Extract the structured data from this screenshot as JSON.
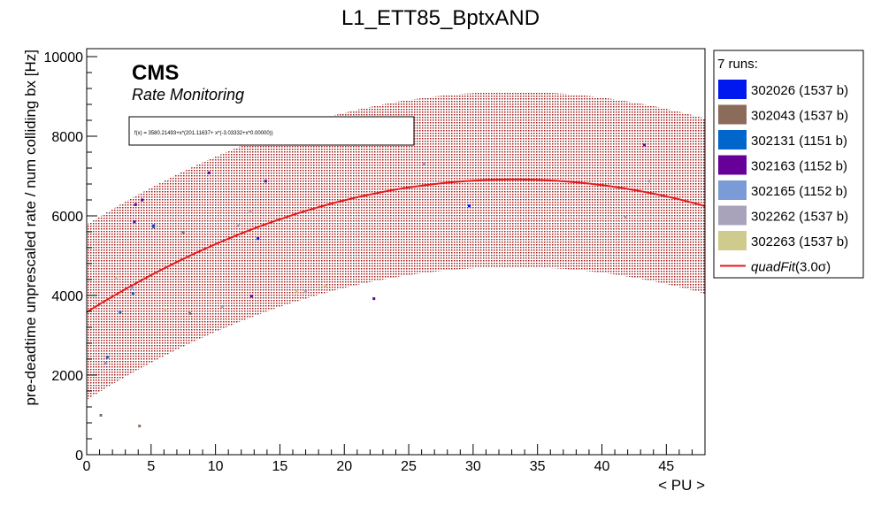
{
  "chart_data": {
    "type": "scatter",
    "title": "L1_ETT85_BptxAND",
    "xlabel": "< PU >",
    "ylabel": "pre-deadtime unprescaled rate / num colliding bx [Hz]",
    "xlim": [
      0,
      48
    ],
    "ylim": [
      0,
      10200
    ],
    "x_ticks": [
      0,
      5,
      10,
      15,
      20,
      25,
      30,
      35,
      40,
      45
    ],
    "y_ticks": [
      0,
      2000,
      4000,
      6000,
      8000,
      10000
    ],
    "grid": false,
    "legend_placement": "right",
    "legend_header": "7 runs:",
    "brand": "CMS",
    "subtitle": "Rate Monitoring",
    "fit_formula": "f(x) = 3580.21493+x*(201.11637+ x*(-3.03332+x*0.00000))",
    "fit": {
      "name": "quadFit(3.0σ)",
      "label_main": "quadFit",
      "label_sigma": "(3.0σ)",
      "color": "#e41a1c",
      "coefficients": [
        3580.21493,
        201.11637,
        -3.03332
      ],
      "band_sigma": 2200,
      "band_color": "#a01818"
    },
    "series": [
      {
        "name": "302026 (1537 b)",
        "color": "#0018f0",
        "points": [
          [
            5.2,
            5750
          ],
          [
            13.3,
            5430
          ],
          [
            29.7,
            6250
          ]
        ]
      },
      {
        "name": "302043 (1537 b)",
        "color": "#8b6b5a",
        "points": [
          [
            8.0,
            3550
          ],
          [
            4.1,
            720
          ],
          [
            1.1,
            990
          ],
          [
            7.5,
            5580
          ]
        ]
      },
      {
        "name": "302131 (1151 b)",
        "color": "#0066cc",
        "points": [
          [
            2.6,
            3580
          ],
          [
            3.6,
            4050
          ],
          [
            5.2,
            5720
          ],
          [
            1.6,
            2450
          ]
        ]
      },
      {
        "name": "302163 (1152 b)",
        "color": "#660099",
        "points": [
          [
            3.8,
            6280
          ],
          [
            9.5,
            7080
          ],
          [
            12.8,
            3980
          ],
          [
            22.3,
            3920
          ],
          [
            43.3,
            7780
          ],
          [
            3.7,
            5850
          ],
          [
            4.3,
            6400
          ],
          [
            13.9,
            6870
          ]
        ]
      },
      {
        "name": "302165 (1152 b)",
        "color": "#7b9bd6",
        "points": [
          [
            1.5,
            2300
          ],
          [
            3.5,
            4200
          ],
          [
            26.2,
            7300
          ]
        ]
      },
      {
        "name": "302262 (1537 b)",
        "color": "#a8a2bb",
        "points": [
          [
            10.5,
            3720
          ],
          [
            17.0,
            4100
          ],
          [
            12.7,
            6100
          ],
          [
            43.7,
            6870
          ],
          [
            41.8,
            5960
          ],
          [
            11.8,
            5750
          ]
        ]
      },
      {
        "name": "302263 (1537 b)",
        "color": "#cfcb8c",
        "points": [
          [
            2.3,
            4450
          ],
          [
            6.1,
            3650
          ],
          [
            18.5,
            4250
          ],
          [
            16.3,
            4100
          ]
        ]
      }
    ]
  }
}
